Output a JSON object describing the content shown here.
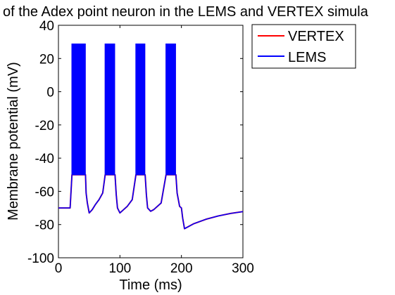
{
  "chart_data": {
    "type": "line",
    "title": "of the Adex point neuron in the LEMS and VERTEX simula",
    "xlabel": "Time (ms)",
    "ylabel": "Membrane potential (mV)",
    "xlim": [
      0,
      300
    ],
    "ylim": [
      -100,
      40
    ],
    "xticks": [
      "0",
      "100",
      "200",
      "300"
    ],
    "yticks": [
      "-100",
      "-80",
      "-60",
      "-40",
      "-20",
      "0",
      "20",
      "40"
    ],
    "grid": false,
    "legend_position": "outside-top-right",
    "burst_windows_ms": [
      [
        22,
        44
      ],
      [
        76,
        92
      ],
      [
        126,
        141
      ],
      [
        175,
        191
      ]
    ],
    "spike_peak_mV": 29,
    "reset_mV": -50,
    "series": [
      {
        "name": "VERTEX",
        "color": "#ff0000",
        "x": [
          0,
          14,
          19,
          22,
          44,
          45,
          47,
          50,
          55,
          60,
          66,
          72,
          76,
          92,
          94,
          96,
          100,
          106,
          112,
          120,
          126,
          141,
          143,
          145,
          150,
          155,
          161,
          167,
          175,
          191,
          193,
          197,
          200,
          202,
          205,
          220,
          240,
          260,
          280,
          300
        ],
        "y": [
          -70,
          -70,
          -70,
          -50,
          -50,
          -61,
          -67,
          -73,
          -71,
          -68,
          -65,
          -61,
          -50,
          -50,
          -62,
          -70,
          -73,
          -71,
          -69,
          -65,
          -50,
          -50,
          -62,
          -70,
          -72,
          -71,
          -69,
          -67,
          -50,
          -50,
          -61,
          -69,
          -70,
          -76,
          -82.5,
          -79.5,
          -76.8,
          -74.8,
          -73.3,
          -72.2
        ]
      },
      {
        "name": "LEMS",
        "color": "#0000ff",
        "x": [
          0,
          14,
          19,
          22,
          44,
          45,
          47,
          50,
          55,
          60,
          66,
          72,
          76,
          92,
          94,
          96,
          100,
          106,
          112,
          120,
          126,
          141,
          143,
          145,
          150,
          155,
          161,
          167,
          175,
          191,
          193,
          197,
          200,
          202,
          205,
          220,
          240,
          260,
          280,
          300
        ],
        "y": [
          -70,
          -70,
          -70,
          -50,
          -50,
          -61,
          -67,
          -73,
          -71,
          -68,
          -65,
          -61,
          -50,
          -50,
          -62,
          -70,
          -73,
          -71,
          -69,
          -65,
          -50,
          -50,
          -62,
          -70,
          -72,
          -71,
          -69,
          -67,
          -50,
          -50,
          -61,
          -69,
          -70,
          -76,
          -82.5,
          -79.5,
          -76.8,
          -74.8,
          -73.3,
          -72.2
        ]
      }
    ]
  }
}
